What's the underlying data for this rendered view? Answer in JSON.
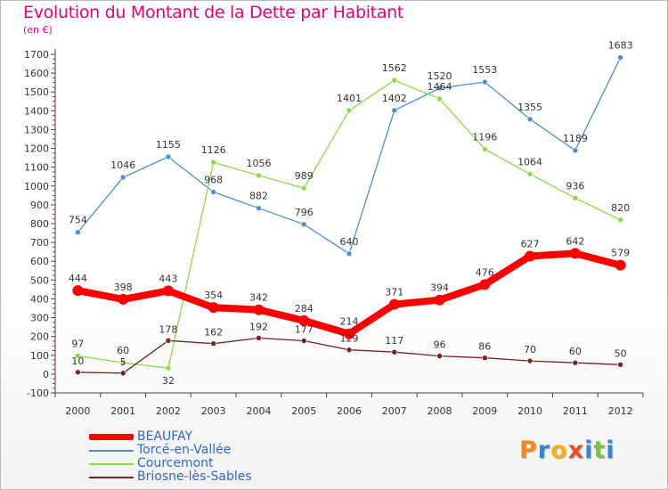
{
  "header": {
    "title": "Evolution du Montant de la Dette par Habitant",
    "unit": "(en €)"
  },
  "chart_data": {
    "type": "line",
    "title": "Evolution du Montant de la Dette par Habitant",
    "ylabel": "(en €)",
    "xlabel": "",
    "x": [
      2000,
      2001,
      2002,
      2003,
      2004,
      2005,
      2006,
      2007,
      2008,
      2009,
      2010,
      2011,
      2012
    ],
    "ylim": [
      -100,
      1700
    ],
    "yticks": [
      -100,
      0,
      100,
      200,
      300,
      400,
      500,
      600,
      700,
      800,
      900,
      1000,
      1100,
      1200,
      1300,
      1400,
      1500,
      1600,
      1700
    ],
    "grid": false,
    "legend_position": "bottom-left",
    "series": [
      {
        "name": "BEAUFAY",
        "color": "#ff0000",
        "values": [
          444,
          398,
          443,
          354,
          342,
          284,
          214,
          371,
          394,
          476,
          627,
          642,
          579
        ]
      },
      {
        "name": "Torcé-en-Vallée",
        "color": "#4a90d0",
        "values": [
          754,
          1046,
          1155,
          968,
          882,
          796,
          640,
          1402,
          1520,
          1553,
          1355,
          1189,
          1683
        ]
      },
      {
        "name": "Courcemont",
        "color": "#88dd44",
        "values": [
          97,
          60,
          32,
          1126,
          1056,
          989,
          1401,
          1562,
          1464,
          1196,
          1064,
          936,
          820
        ]
      },
      {
        "name": "Briosne-lès-Sables",
        "color": "#7a2222",
        "values": [
          10,
          5,
          178,
          162,
          192,
          177,
          129,
          117,
          96,
          86,
          70,
          60,
          50
        ]
      }
    ]
  },
  "branding": {
    "logo_text": "Proxiti",
    "logo_letters": [
      {
        "ch": "P",
        "color": "#ee8a22"
      },
      {
        "ch": "r",
        "color": "#3b84c9"
      },
      {
        "ch": "o",
        "color": "#f0b020"
      },
      {
        "ch": "x",
        "color": "#e84c2a"
      },
      {
        "ch": "i",
        "color": "#3b84c9"
      },
      {
        "ch": "t",
        "color": "#7cc142"
      },
      {
        "ch": "i",
        "color": "#3b84c9"
      }
    ]
  }
}
